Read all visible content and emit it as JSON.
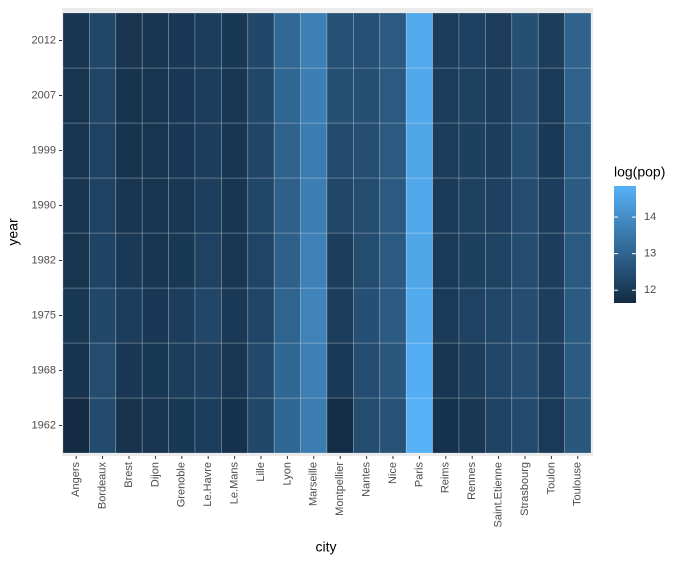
{
  "chart_data": {
    "type": "heatmap",
    "x_label": "city",
    "y_label": "year",
    "legend_title": "log(pop)",
    "x_categories": [
      "Angers",
      "Bordeaux",
      "Brest",
      "Dijon",
      "Grenoble",
      "Le.Havre",
      "Le.Mans",
      "Lille",
      "Lyon",
      "Marseille",
      "Montpellier",
      "Nantes",
      "Nice",
      "Paris",
      "Reims",
      "Rennes",
      "Saint.Etienne",
      "Strasbourg",
      "Toulon",
      "Toulouse"
    ],
    "y_categories": [
      1962,
      1968,
      1975,
      1982,
      1990,
      1999,
      2007,
      2012
    ],
    "values": [
      [
        11.65,
        12.42,
        11.85,
        11.87,
        11.96,
        12.08,
        11.8,
        12.32,
        13.08,
        13.59,
        11.7,
        12.43,
        12.59,
        14.85,
        11.8,
        11.92,
        12.22,
        12.4,
        12.0,
        12.69
      ],
      [
        11.85,
        12.43,
        11.97,
        11.96,
        12.07,
        12.18,
        11.92,
        12.37,
        13.08,
        13.68,
        11.98,
        12.47,
        12.7,
        14.79,
        11.91,
        12.08,
        12.31,
        12.46,
        12.05,
        12.79
      ],
      [
        11.96,
        12.33,
        12.08,
        11.97,
        12.07,
        12.3,
        11.98,
        12.28,
        13.0,
        13.74,
        12.07,
        12.52,
        12.79,
        14.66,
        12.0,
        12.2,
        12.31,
        12.46,
        12.11,
        12.79
      ],
      [
        11.88,
        12.23,
        11.98,
        11.9,
        11.95,
        12.2,
        11.94,
        12.25,
        12.92,
        13.7,
        12.1,
        12.44,
        12.76,
        14.59,
        12.0,
        12.14,
        12.19,
        12.43,
        12.07,
        12.77
      ],
      [
        11.9,
        12.2,
        11.9,
        11.88,
        11.92,
        12.11,
        11.9,
        12.31,
        12.92,
        13.62,
        12.3,
        12.44,
        12.76,
        14.6,
        12.0,
        12.17,
        12.18,
        12.45,
        12.07,
        12.78
      ],
      [
        11.91,
        12.2,
        11.86,
        11.88,
        11.97,
        12.07,
        11.9,
        12.27,
        12.99,
        13.61,
        12.4,
        12.48,
        12.75,
        14.59,
        12.06,
        12.15,
        12.09,
        12.48,
        11.98,
        12.82
      ],
      [
        11.88,
        12.28,
        11.86,
        11.88,
        11.97,
        12.09,
        11.93,
        12.33,
        13.05,
        13.65,
        12.5,
        12.5,
        12.77,
        14.62,
        12.08,
        12.17,
        12.08,
        12.49,
        12.01,
        12.96
      ],
      [
        11.9,
        12.31,
        11.87,
        11.88,
        11.97,
        12.08,
        11.95,
        12.34,
        13.1,
        13.67,
        12.55,
        12.56,
        12.76,
        14.63,
        12.08,
        12.18,
        12.06,
        12.5,
        12.07,
        12.97
      ]
    ],
    "color_limits": [
      11.65,
      14.85
    ],
    "color_low": "#132B43",
    "color_high": "#56B1F7",
    "legend_ticks": [
      12,
      13,
      14
    ]
  }
}
